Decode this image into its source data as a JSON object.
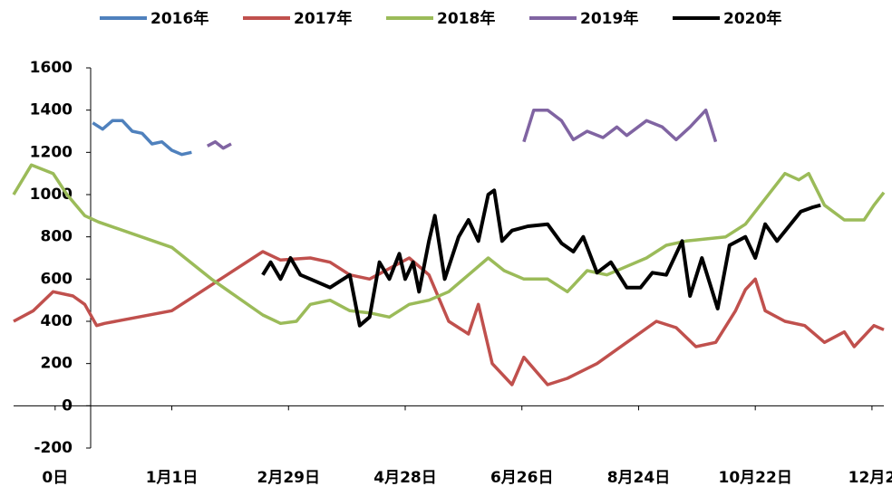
{
  "chart_data": {
    "type": "line",
    "series": [
      {
        "name": "2016年",
        "color": "#4f81bd",
        "x": [
          -40,
          -35,
          -30,
          -25,
          -20,
          -15,
          -10,
          -5,
          0,
          5,
          10
        ],
        "values": [
          1340,
          1310,
          1350,
          1350,
          1300,
          1290,
          1240,
          1250,
          1210,
          1190,
          1200
        ]
      },
      {
        "name": "2017年",
        "color": "#c0504d",
        "x": [
          -80,
          -70,
          -60,
          -50,
          -44,
          -38,
          -34,
          0,
          46,
          55,
          70,
          80,
          90,
          100,
          110,
          120,
          130,
          140,
          150,
          155,
          162,
          172,
          178,
          190,
          200,
          215,
          230,
          245,
          255,
          265,
          275,
          285,
          290,
          295,
          300,
          310,
          320,
          330,
          340,
          345,
          355,
          360
        ],
        "values": [
          400,
          450,
          540,
          520,
          480,
          380,
          390,
          450,
          730,
          690,
          700,
          680,
          620,
          600,
          650,
          700,
          620,
          400,
          340,
          480,
          200,
          100,
          230,
          100,
          130,
          200,
          300,
          400,
          370,
          280,
          300,
          450,
          550,
          600,
          450,
          400,
          380,
          300,
          350,
          280,
          380,
          360
        ]
      },
      {
        "name": "2018年",
        "color": "#9bbb59",
        "x": [
          -80,
          -71,
          -60,
          -53,
          -44,
          -37,
          0,
          20,
          46,
          55,
          63,
          70,
          80,
          90,
          100,
          110,
          120,
          130,
          140,
          150,
          160,
          168,
          178,
          190,
          200,
          210,
          220,
          230,
          240,
          250,
          260,
          270,
          280,
          290,
          300,
          310,
          317,
          322,
          330,
          340,
          350,
          355,
          360
        ],
        "values": [
          1000,
          1140,
          1100,
          1000,
          900,
          870,
          750,
          600,
          430,
          390,
          400,
          480,
          500,
          450,
          440,
          420,
          480,
          500,
          540,
          620,
          700,
          640,
          600,
          600,
          540,
          640,
          620,
          660,
          700,
          760,
          780,
          790,
          800,
          860,
          980,
          1100,
          1070,
          1100,
          950,
          880,
          880,
          950,
          1010
        ]
      },
      {
        "name": "2019年",
        "color": "#8064a2",
        "x": [
          18,
          22,
          26,
          30,
          100,
          178,
          183,
          190,
          197,
          203,
          210,
          218,
          225,
          230,
          240,
          248,
          255,
          262,
          270,
          275
        ],
        "values": [
          1230,
          1250,
          1220,
          1240,
          null,
          1250,
          1400,
          1400,
          1350,
          1260,
          1300,
          1270,
          1320,
          1280,
          1350,
          1320,
          1260,
          1320,
          1400,
          1250
        ]
      },
      {
        "name": "2020年",
        "color": "#000000",
        "x": [
          46,
          50,
          55,
          60,
          65,
          70,
          80,
          85,
          90,
          95,
          100,
          105,
          110,
          115,
          118,
          122,
          125,
          130,
          133,
          138,
          145,
          150,
          155,
          160,
          163,
          167,
          172,
          180,
          190,
          197,
          203,
          208,
          215,
          222,
          230,
          237,
          243,
          250,
          258,
          262,
          268,
          276,
          282,
          290,
          295,
          300,
          306,
          312,
          318,
          324,
          328
        ],
        "values": [
          620,
          680,
          600,
          700,
          620,
          600,
          560,
          590,
          620,
          380,
          420,
          680,
          600,
          720,
          600,
          680,
          540,
          780,
          900,
          600,
          800,
          880,
          780,
          1000,
          1020,
          780,
          830,
          850,
          860,
          770,
          730,
          800,
          630,
          680,
          560,
          560,
          630,
          620,
          780,
          520,
          700,
          460,
          760,
          800,
          700,
          860,
          780,
          850,
          920,
          940,
          950
        ]
      }
    ],
    "xlim": [
      -80,
      360
    ],
    "xticks": [
      {
        "value": -59,
        "label": "0日"
      },
      {
        "value": 0,
        "label": "1月1日"
      },
      {
        "value": 59,
        "label": "2月29日"
      },
      {
        "value": 118,
        "label": "4月28日"
      },
      {
        "value": 177,
        "label": "6月26日"
      },
      {
        "value": 236,
        "label": "8月24日"
      },
      {
        "value": 295,
        "label": "10月22日"
      },
      {
        "value": 354,
        "label": "12月2"
      }
    ],
    "ylim": [
      -200,
      1600
    ],
    "yticks": [
      -200,
      0,
      200,
      400,
      600,
      800,
      1000,
      1200,
      1400,
      1600
    ],
    "legend": "top"
  }
}
